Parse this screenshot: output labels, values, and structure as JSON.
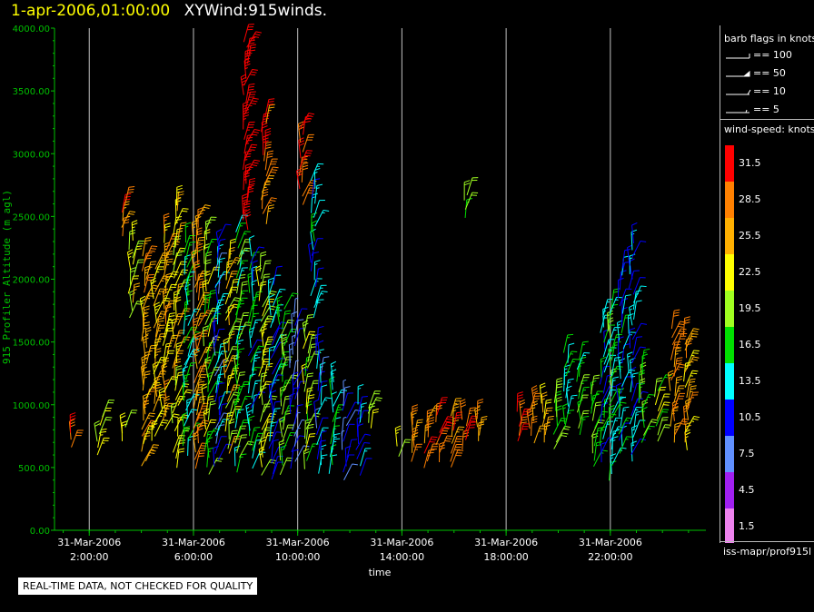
{
  "header": {
    "timestamp": "1-apr-2006,01:00:00",
    "plot_name": "XYWind:915winds."
  },
  "legend": {
    "flags_title": "barb flags in knots",
    "flags": [
      "== 100",
      "== 50",
      "== 10",
      "== 5"
    ],
    "speed_title": "wind-speed: knots",
    "speed_bins": [
      {
        "label": "31.5",
        "color": "#ff0000"
      },
      {
        "label": "28.5",
        "color": "#ff8000"
      },
      {
        "label": "25.5",
        "color": "#ffb000"
      },
      {
        "label": "22.5",
        "color": "#ffff00"
      },
      {
        "label": "19.5",
        "color": "#a0ff20"
      },
      {
        "label": "16.5",
        "color": "#00e000"
      },
      {
        "label": "13.5",
        "color": "#00ffff"
      },
      {
        "label": "10.5",
        "color": "#0000ff"
      },
      {
        "label": "7.5",
        "color": "#6090ff"
      },
      {
        "label": "4.5",
        "color": "#a020f0"
      },
      {
        "label": "1.5",
        "color": "#ee82ee"
      }
    ]
  },
  "footer": {
    "source": "iss-mapr/prof915l",
    "quality_note": "REAL-TIME DATA, NOT CHECKED FOR QUALITY"
  },
  "colors": {
    "axis": "#00c000",
    "grid": "#c0c0c0",
    "tick_text": "#00c000",
    "x_text": "#ffffff"
  },
  "chart_data": {
    "type": "wind-barb time-height",
    "ylabel": "915 Profiler Altitude (m agl)",
    "xlabel": "time",
    "ylim": [
      0,
      4000
    ],
    "yticks": [
      "0.00",
      "500.00",
      "1000.00",
      "1500.00",
      "2000.00",
      "2500.00",
      "3000.00",
      "3500.00",
      "4000.00"
    ],
    "xlim": [
      "31-Mar-2006 00:40",
      "31-Mar-2006 25:40"
    ],
    "xticks": [
      {
        "date": "31-Mar-2006",
        "time": "2:00:00",
        "hour": 2
      },
      {
        "date": "31-Mar-2006",
        "time": "6:00:00",
        "hour": 6
      },
      {
        "date": "31-Mar-2006",
        "time": "10:00:00",
        "hour": 10
      },
      {
        "date": "31-Mar-2006",
        "time": "14:00:00",
        "hour": 14
      },
      {
        "date": "31-Mar-2006",
        "time": "18:00:00",
        "hour": 18
      },
      {
        "date": "31-Mar-2006",
        "time": "22:00:00",
        "hour": 22
      }
    ],
    "grid": "vertical",
    "barb_profiles": [
      {
        "hour": 1.3,
        "alt_min": 650,
        "alt_max": 800,
        "speed": 30
      },
      {
        "hour": 2.4,
        "alt_min": 600,
        "alt_max": 900,
        "speed": 22
      },
      {
        "hour": 3.3,
        "alt_min": 700,
        "alt_max": 850,
        "speed": 22
      },
      {
        "hour": 3.3,
        "alt_min": 2350,
        "alt_max": 2600,
        "speed": 28
      },
      {
        "hour": 3.6,
        "alt_min": 1700,
        "alt_max": 2300,
        "speed": 22
      },
      {
        "hour": 4.1,
        "alt_min": 500,
        "alt_max": 2200,
        "speed": 26
      },
      {
        "hour": 4.5,
        "alt_min": 700,
        "alt_max": 2100,
        "speed": 24
      },
      {
        "hour": 4.9,
        "alt_min": 800,
        "alt_max": 2400,
        "speed": 25
      },
      {
        "hour": 5.3,
        "alt_min": 500,
        "alt_max": 2600,
        "speed": 23
      },
      {
        "hour": 5.7,
        "alt_min": 600,
        "alt_max": 2300,
        "speed": 15
      },
      {
        "hour": 6.1,
        "alt_min": 500,
        "alt_max": 2500,
        "speed": 27
      },
      {
        "hour": 6.5,
        "alt_min": 450,
        "alt_max": 2400,
        "speed": 19
      },
      {
        "hour": 6.9,
        "alt_min": 500,
        "alt_max": 2300,
        "speed": 11
      },
      {
        "hour": 7.3,
        "alt_min": 600,
        "alt_max": 2200,
        "speed": 23
      },
      {
        "hour": 7.7,
        "alt_min": 450,
        "alt_max": 2400,
        "speed": 17
      },
      {
        "hour": 8.0,
        "alt_min": 2400,
        "alt_max": 3900,
        "speed": 33
      },
      {
        "hour": 8.2,
        "alt_min": 500,
        "alt_max": 2200,
        "speed": 14
      },
      {
        "hour": 8.6,
        "alt_min": 450,
        "alt_max": 2100,
        "speed": 21
      },
      {
        "hour": 8.7,
        "alt_min": 2450,
        "alt_max": 3300,
        "speed": 29
      },
      {
        "hour": 9.0,
        "alt_min": 400,
        "alt_max": 2000,
        "speed": 12
      },
      {
        "hour": 9.4,
        "alt_min": 450,
        "alt_max": 1800,
        "speed": 18
      },
      {
        "hour": 9.8,
        "alt_min": 500,
        "alt_max": 1700,
        "speed": 9
      },
      {
        "hour": 10.1,
        "alt_min": 2600,
        "alt_max": 3200,
        "speed": 31
      },
      {
        "hour": 10.3,
        "alt_min": 500,
        "alt_max": 1600,
        "speed": 20
      },
      {
        "hour": 10.6,
        "alt_min": 1700,
        "alt_max": 2800,
        "speed": 13
      },
      {
        "hour": 10.8,
        "alt_min": 450,
        "alt_max": 1500,
        "speed": 11
      },
      {
        "hour": 11.3,
        "alt_min": 450,
        "alt_max": 1200,
        "speed": 15
      },
      {
        "hour": 11.8,
        "alt_min": 400,
        "alt_max": 1100,
        "speed": 9
      },
      {
        "hour": 12.3,
        "alt_min": 450,
        "alt_max": 1000,
        "speed": 12
      },
      {
        "hour": 12.8,
        "alt_min": 800,
        "alt_max": 1000,
        "speed": 22
      },
      {
        "hour": 13.8,
        "alt_min": 600,
        "alt_max": 700,
        "speed": 22
      },
      {
        "hour": 14.4,
        "alt_min": 550,
        "alt_max": 900,
        "speed": 27
      },
      {
        "hour": 14.9,
        "alt_min": 500,
        "alt_max": 900,
        "speed": 28
      },
      {
        "hour": 15.4,
        "alt_min": 550,
        "alt_max": 950,
        "speed": 30
      },
      {
        "hour": 15.9,
        "alt_min": 500,
        "alt_max": 950,
        "speed": 28
      },
      {
        "hour": 16.4,
        "alt_min": 650,
        "alt_max": 900,
        "speed": 29
      },
      {
        "hour": 16.9,
        "alt_min": 700,
        "alt_max": 900,
        "speed": 26
      },
      {
        "hour": 16.4,
        "alt_min": 2500,
        "alt_max": 2700,
        "speed": 20
      },
      {
        "hour": 18.5,
        "alt_min": 700,
        "alt_max": 950,
        "speed": 30
      },
      {
        "hour": 19.0,
        "alt_min": 700,
        "alt_max": 1050,
        "speed": 26
      },
      {
        "hour": 19.4,
        "alt_min": 700,
        "alt_max": 1050,
        "speed": 24
      },
      {
        "hour": 19.9,
        "alt_min": 650,
        "alt_max": 1100,
        "speed": 19
      },
      {
        "hour": 20.3,
        "alt_min": 800,
        "alt_max": 1400,
        "speed": 14
      },
      {
        "hour": 20.8,
        "alt_min": 750,
        "alt_max": 1350,
        "speed": 17
      },
      {
        "hour": 21.3,
        "alt_min": 500,
        "alt_max": 1150,
        "speed": 18
      },
      {
        "hour": 21.7,
        "alt_min": 550,
        "alt_max": 1700,
        "speed": 13
      },
      {
        "hour": 22.0,
        "alt_min": 400,
        "alt_max": 1800,
        "speed": 16
      },
      {
        "hour": 22.4,
        "alt_min": 600,
        "alt_max": 2100,
        "speed": 14
      },
      {
        "hour": 22.8,
        "alt_min": 550,
        "alt_max": 2300,
        "speed": 12
      },
      {
        "hour": 23.2,
        "alt_min": 700,
        "alt_max": 1300,
        "speed": 18
      },
      {
        "hour": 23.8,
        "alt_min": 700,
        "alt_max": 1150,
        "speed": 20
      },
      {
        "hour": 24.4,
        "alt_min": 700,
        "alt_max": 1600,
        "speed": 27
      },
      {
        "hour": 24.9,
        "alt_min": 650,
        "alt_max": 1550,
        "speed": 25
      }
    ]
  }
}
